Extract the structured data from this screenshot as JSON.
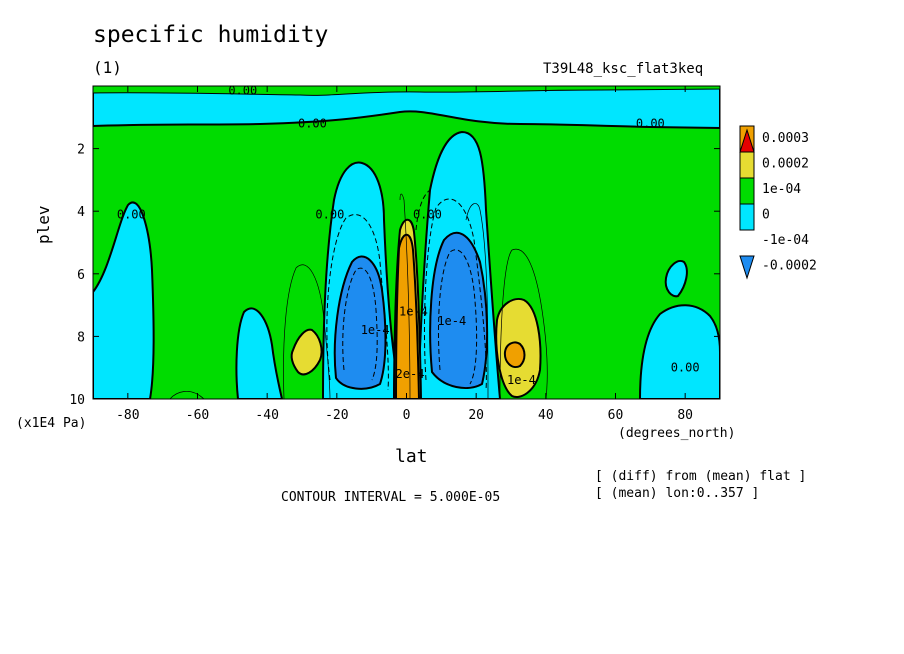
{
  "header": {
    "title": "specific humidity",
    "subtitle": "(1)",
    "run_id": "T39L48_ksc_flat3keq"
  },
  "notes": {
    "contour_interval": "CONTOUR INTERVAL = 5.000E-05",
    "diff_line": "[ (diff) from (mean) flat ]",
    "mean_line": "[ (mean) lon:0..357 ]"
  },
  "chart_data": {
    "type": "heatmap",
    "title": "specific humidity",
    "subtitle": "(1)",
    "xlabel": "lat",
    "x_unit": "(degrees_north)",
    "ylabel": "plev",
    "y_unit": "(x1E4 Pa)",
    "xlim": [
      -90,
      90
    ],
    "ylim": [
      10,
      0
    ],
    "x_ticks": [
      -80,
      -60,
      -40,
      -20,
      0,
      20,
      40,
      60,
      80
    ],
    "y_ticks": [
      2,
      4,
      6,
      8,
      10
    ],
    "contour_interval": 5e-05,
    "colorbar": {
      "labels": [
        "0.0003",
        "0.0002",
        "1e-04",
        "0",
        "-1e-04",
        "-0.0002"
      ],
      "levels": [
        -0.0002,
        -0.0001,
        0,
        0.0001,
        0.0002,
        0.0003
      ],
      "colors": [
        "#1e8cf0",
        "#00e6ff",
        "#00dc00",
        "#e6dc32",
        "#f0a000",
        "#e60000"
      ]
    },
    "contour_labels": [
      {
        "text": "0.00",
        "lat": -47,
        "plev": 0.15
      },
      {
        "text": "0.00",
        "lat": -27,
        "plev": 1.2
      },
      {
        "text": "0.00",
        "lat": 70,
        "plev": 1.2
      },
      {
        "text": "0.00",
        "lat": -79,
        "plev": 4.1
      },
      {
        "text": "0.00",
        "lat": -22,
        "plev": 4.1
      },
      {
        "text": "0.00",
        "lat": 6,
        "plev": 4.1
      },
      {
        "text": "1e-4",
        "lat": 2,
        "plev": 7.2
      },
      {
        "text": "1e-4",
        "lat": -9,
        "plev": 7.8
      },
      {
        "text": "1e-4",
        "lat": 13,
        "plev": 7.5
      },
      {
        "text": "2e-4",
        "lat": 1,
        "plev": 9.2
      },
      {
        "text": "1e-4",
        "lat": 33,
        "plev": 9.4
      },
      {
        "text": "0.00",
        "lat": 80,
        "plev": 9.0
      }
    ],
    "anomalies": [
      {
        "type": "min",
        "lat_center": -13,
        "plev_center": 7.8,
        "value": -0.0002
      },
      {
        "type": "max",
        "lat_center": 0,
        "plev_center": 8.0,
        "value": 0.0002
      },
      {
        "type": "min",
        "lat_center": 13,
        "plev_center": 7.6,
        "value": -0.0002
      },
      {
        "type": "max",
        "lat_center": 30,
        "plev_center": 8.5,
        "value": 0.0002
      },
      {
        "type": "max",
        "lat_center": -28,
        "plev_center": 8.4,
        "value": 0.0001
      }
    ]
  }
}
